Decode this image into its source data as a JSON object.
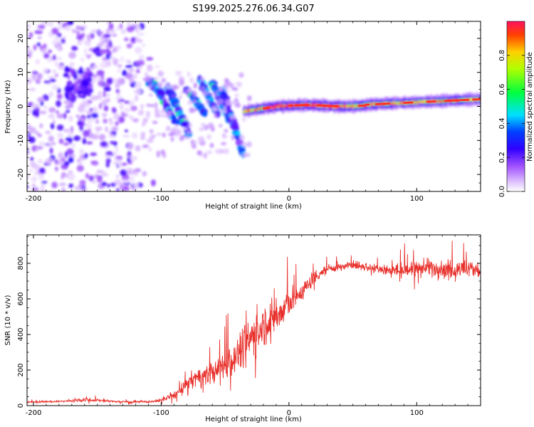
{
  "title": "S199.2025.276.06.34.G07",
  "colors": {
    "snr_line": "#e8312c",
    "axis": "#000000",
    "background": "#ffffff"
  },
  "chart_data": [
    {
      "type": "heatmap",
      "name": "spectrogram",
      "xlabel": "Height of straight line (km)",
      "ylabel": "Frequency (Hz)",
      "xlim": [
        -205,
        150
      ],
      "ylim": [
        -25,
        25
      ],
      "x_ticks": [
        -200,
        -100,
        0,
        100
      ],
      "y_ticks": [
        -20,
        -10,
        0,
        10,
        20
      ],
      "x_tick_labels": [
        "-200",
        "-100",
        "0",
        "100"
      ],
      "y_tick_labels": [
        "-20",
        "-10",
        "0",
        "10",
        "20"
      ],
      "colorbar": {
        "label": "Normalized spectral amplitude",
        "range": [
          0,
          1
        ],
        "ticks": [
          0.0,
          0.2,
          0.4,
          0.6,
          0.8
        ],
        "tick_labels": [
          "0.0",
          "0.2",
          "0.4",
          "0.6",
          "0.8"
        ],
        "colors": [
          "#ffffff",
          "#c080ff",
          "#6a00ff",
          "#0000ff",
          "#00c8ff",
          "#00ff60",
          "#c8ff00",
          "#ffd000",
          "#ff5000",
          "#ff1050"
        ]
      },
      "features": [
        {
          "description": "scattered noise blobs",
          "x_range": [
            -205,
            -115
          ],
          "freq_range": [
            -25,
            25
          ],
          "amplitude": 0.1
        },
        {
          "description": "diagonal streaks",
          "x_range": [
            -110,
            -35
          ],
          "freq_range": [
            -14,
            8
          ],
          "amplitude": 0.25
        },
        {
          "description": "signal line",
          "x_range": [
            -35,
            150
          ],
          "freq": [
            -1,
            2
          ],
          "amplitude": 0.9
        }
      ]
    },
    {
      "type": "line",
      "name": "snr",
      "xlabel": "Height of straight line (km)",
      "ylabel": "SNR (10 * v/v)",
      "xlim": [
        -205,
        150
      ],
      "ylim": [
        0,
        960
      ],
      "x_ticks": [
        -200,
        -100,
        0,
        100
      ],
      "y_ticks": [
        0,
        200,
        400,
        600,
        800
      ],
      "x_tick_labels": [
        "-200",
        "-100",
        "0",
        "100"
      ],
      "y_tick_labels": [
        "0",
        "200",
        "400",
        "600",
        "800"
      ],
      "series": [
        {
          "name": "SNR",
          "x": [
            -205,
            -190,
            -175,
            -160,
            -150,
            -140,
            -130,
            -120,
            -110,
            -100,
            -95,
            -90,
            -85,
            -80,
            -75,
            -70,
            -65,
            -60,
            -55,
            -50,
            -45,
            -40,
            -35,
            -30,
            -25,
            -20,
            -15,
            -10,
            -5,
            0,
            5,
            10,
            15,
            20,
            25,
            30,
            40,
            50,
            60,
            70,
            80,
            90,
            100,
            110,
            120,
            130,
            140,
            150
          ],
          "values": [
            20,
            22,
            25,
            35,
            30,
            25,
            22,
            20,
            22,
            30,
            45,
            60,
            80,
            120,
            150,
            160,
            170,
            180,
            200,
            230,
            260,
            300,
            330,
            380,
            420,
            450,
            480,
            500,
            530,
            580,
            600,
            640,
            680,
            720,
            750,
            770,
            780,
            790,
            780,
            770,
            760,
            760,
            770,
            780,
            770,
            760,
            770,
            760
          ],
          "noise": [
            8,
            8,
            10,
            15,
            12,
            10,
            8,
            8,
            10,
            15,
            20,
            30,
            40,
            60,
            70,
            80,
            90,
            100,
            110,
            120,
            140,
            150,
            160,
            170,
            180,
            180,
            170,
            160,
            150,
            140,
            110,
            90,
            70,
            60,
            50,
            40,
            35,
            35,
            40,
            45,
            55,
            60,
            70,
            80,
            80,
            80,
            80,
            80
          ]
        }
      ]
    }
  ]
}
